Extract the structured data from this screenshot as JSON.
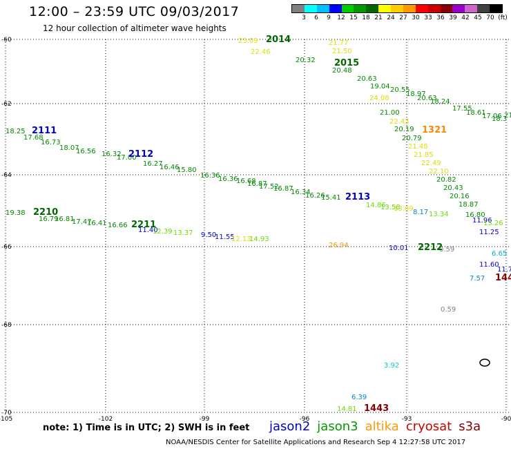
{
  "header": {
    "title": "12:00 – 23:59 UTC 09/03/2017",
    "subtitle": "12 hour collection of altimeter wave heights"
  },
  "colorbar": {
    "colors": [
      "#808080",
      "#00ffff",
      "#00bfff",
      "#0000ff",
      "#00cc00",
      "#009900",
      "#006600",
      "#ffff00",
      "#ffcc00",
      "#ff9900",
      "#ff0000",
      "#cc0000",
      "#880000",
      "#9900cc",
      "#cc66cc",
      "#404040",
      "#000000"
    ],
    "tick_labels": [
      "3",
      "6",
      "9",
      "12",
      "15",
      "18",
      "21",
      "24",
      "27",
      "30",
      "33",
      "36",
      "39",
      "42",
      "45",
      "70",
      "(ft)"
    ]
  },
  "axes": {
    "lat_labels": [
      "-60",
      "-62",
      "-64",
      "-66",
      "-68",
      "-70"
    ],
    "lon_labels": [
      "-105",
      "-102",
      "-99",
      "-96",
      "-93",
      "-90"
    ]
  },
  "map_data": {
    "pass_labels": [
      {
        "text": "2111",
        "color": "#0000cc"
      },
      {
        "text": "2112",
        "color": "#0000cc"
      },
      {
        "text": "2113",
        "color": "#0000cc"
      },
      {
        "text": "2210",
        "color": "#006600"
      },
      {
        "text": "2211",
        "color": "#006600"
      },
      {
        "text": "2212",
        "color": "#006600"
      },
      {
        "text": "2014",
        "color": "#006600"
      },
      {
        "text": "2015",
        "color": "#006600"
      },
      {
        "text": "1321",
        "color": "#ff8800"
      },
      {
        "text": "144",
        "color": "#880000"
      },
      {
        "text": "1443",
        "color": "#880000"
      }
    ],
    "values": [
      {
        "text": "23.09",
        "color": "#dddd00"
      },
      {
        "text": "22.46",
        "color": "#dddd00"
      },
      {
        "text": "21.77",
        "color": "#dddd00"
      },
      {
        "text": "21.50",
        "color": "#dddd00"
      },
      {
        "text": "20.32",
        "color": "#008800"
      },
      {
        "text": "20.48",
        "color": "#008800"
      },
      {
        "text": "20.63",
        "color": "#008800"
      },
      {
        "text": "19.04",
        "color": "#008800"
      },
      {
        "text": "20.55",
        "color": "#008800"
      },
      {
        "text": "18.97",
        "color": "#008800"
      },
      {
        "text": "20.63",
        "color": "#008800"
      },
      {
        "text": "18.24",
        "color": "#008800"
      },
      {
        "text": "17.55",
        "color": "#008800"
      },
      {
        "text": "18.61",
        "color": "#008800"
      },
      {
        "text": "17.06",
        "color": "#008800"
      },
      {
        "text": "18.3",
        "color": "#008800"
      },
      {
        "text": "24.08",
        "color": "#dddd00"
      },
      {
        "text": "21.00",
        "color": "#008800"
      },
      {
        "text": "22.43",
        "color": "#dddd00"
      },
      {
        "text": "20.19",
        "color": "#008800"
      },
      {
        "text": "20.79",
        "color": "#008800"
      },
      {
        "text": "21.48",
        "color": "#dddd00"
      },
      {
        "text": "21.85",
        "color": "#dddd00"
      },
      {
        "text": "22.49",
        "color": "#dddd00"
      },
      {
        "text": "22.10",
        "color": "#dddd00"
      },
      {
        "text": "20.82",
        "color": "#008800"
      },
      {
        "text": "20.43",
        "color": "#008800"
      },
      {
        "text": "20.16",
        "color": "#008800"
      },
      {
        "text": "18.87",
        "color": "#008800"
      },
      {
        "text": "16.80",
        "color": "#008800"
      },
      {
        "text": "11.96",
        "color": "#0000cc"
      },
      {
        "text": "11.25",
        "color": "#0000cc"
      },
      {
        "text": "11.60",
        "color": "#0000cc"
      },
      {
        "text": "7.57",
        "color": "#0088cc"
      },
      {
        "text": "6.65",
        "color": "#00aacc"
      },
      {
        "text": "10.01",
        "color": "#0000cc"
      },
      {
        "text": "0.59",
        "color": "#808080"
      },
      {
        "text": "0.59",
        "color": "#808080"
      },
      {
        "text": "8.17",
        "color": "#0088cc"
      },
      {
        "text": "13.34",
        "color": "#66dd00"
      },
      {
        "text": "18.25",
        "color": "#008800"
      },
      {
        "text": "17.68",
        "color": "#008800"
      },
      {
        "text": "16.73",
        "color": "#008800"
      },
      {
        "text": "18.07",
        "color": "#008800"
      },
      {
        "text": "16.56",
        "color": "#008800"
      },
      {
        "text": "16.32",
        "color": "#008800"
      },
      {
        "text": "17.00",
        "color": "#008800"
      },
      {
        "text": "16.27",
        "color": "#008800"
      },
      {
        "text": "16.46",
        "color": "#008800"
      },
      {
        "text": "15.80",
        "color": "#008800"
      },
      {
        "text": "16.36",
        "color": "#008800"
      },
      {
        "text": "16.36",
        "color": "#008800"
      },
      {
        "text": "16.68",
        "color": "#008800"
      },
      {
        "text": "16.87",
        "color": "#008800"
      },
      {
        "text": "17.52",
        "color": "#008800"
      },
      {
        "text": "16.87",
        "color": "#008800"
      },
      {
        "text": "16.34",
        "color": "#008800"
      },
      {
        "text": "16.26",
        "color": "#008800"
      },
      {
        "text": "15.41",
        "color": "#008800"
      },
      {
        "text": "14.86",
        "color": "#66dd00"
      },
      {
        "text": "13.58",
        "color": "#66dd00"
      },
      {
        "text": "13.09",
        "color": "#dddd00"
      },
      {
        "text": "19.38",
        "color": "#008800"
      },
      {
        "text": "16.79",
        "color": "#008800"
      },
      {
        "text": "16.81",
        "color": "#008800"
      },
      {
        "text": "17.47",
        "color": "#008800"
      },
      {
        "text": "16.41",
        "color": "#008800"
      },
      {
        "text": "16.66",
        "color": "#008800"
      },
      {
        "text": "11.40",
        "color": "#0000cc"
      },
      {
        "text": "12.39",
        "color": "#66dd00"
      },
      {
        "text": "13.37",
        "color": "#66dd00"
      },
      {
        "text": "9.50",
        "color": "#0000cc"
      },
      {
        "text": "11.55",
        "color": "#0000cc"
      },
      {
        "text": "12.13",
        "color": "#dddd00"
      },
      {
        "text": "14.93",
        "color": "#66dd00"
      },
      {
        "text": "26.94",
        "color": "#ee9900"
      },
      {
        "text": "3.92",
        "color": "#00cccc"
      },
      {
        "text": "6.39",
        "color": "#0088cc"
      },
      {
        "text": "14.81",
        "color": "#66dd00"
      },
      {
        "text": "13.26",
        "color": "#66dd00"
      },
      {
        "text": "21.1",
        "color": "#008800"
      },
      {
        "text": "11.7",
        "color": "#0000cc"
      }
    ]
  },
  "footer": {
    "note": "note: 1) Time is in UTC; 2) SWH is in feet",
    "satellites": [
      {
        "name": "jason2",
        "color": "#0000cc"
      },
      {
        "name": "jason3",
        "color": "#009900"
      },
      {
        "name": "altika",
        "color": "#ff9900"
      },
      {
        "name": "cryosat",
        "color": "#cc0000"
      },
      {
        "name": "s3a",
        "color": "#880000"
      }
    ],
    "credit": "NOAA/NESDIS Center for Satellite Applications and Research   Sep  4 12:27:58 UTC 2017"
  }
}
